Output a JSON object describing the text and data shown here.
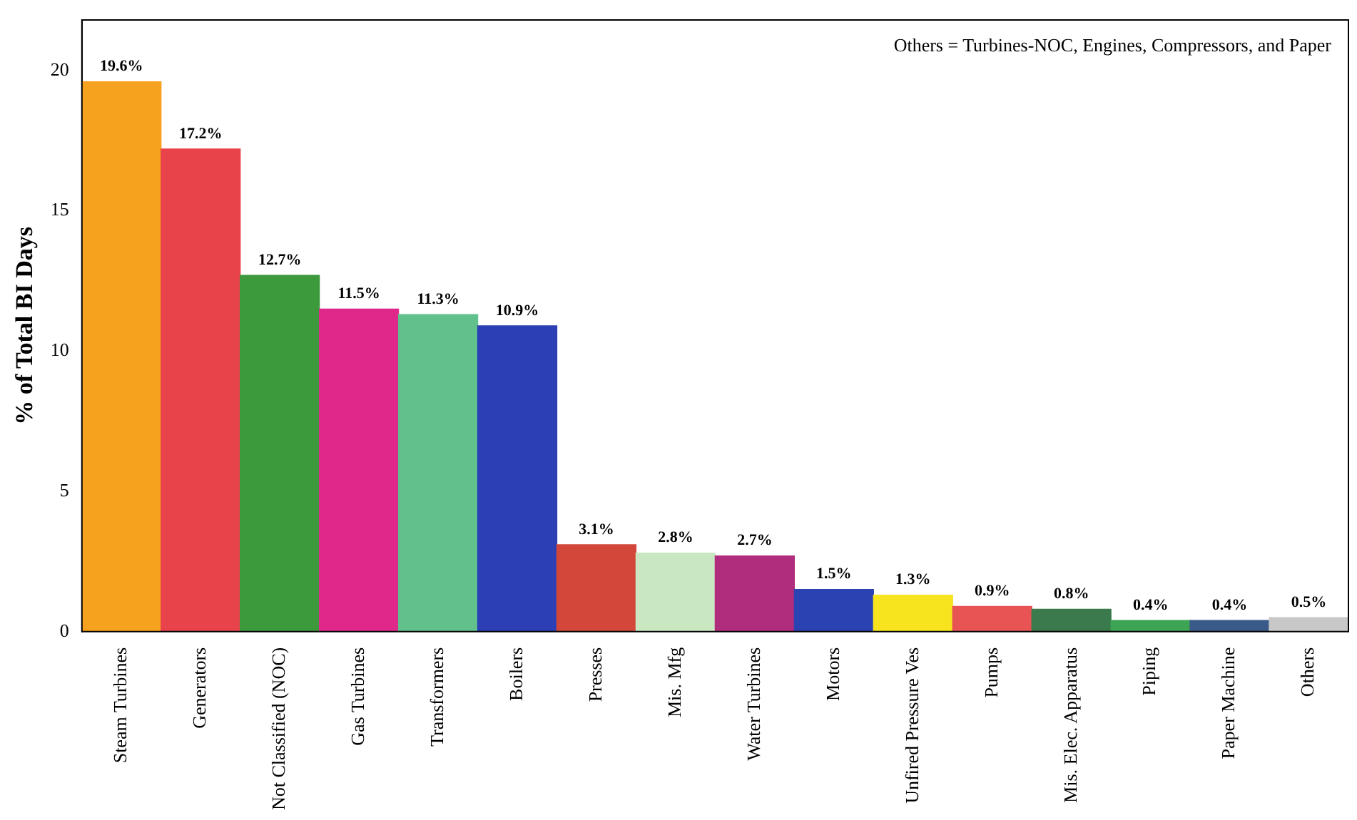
{
  "chart_data": {
    "type": "bar",
    "ylabel": "% of Total BI Days",
    "categories": [
      "Steam Turbines",
      "Generators",
      "Not Classified (NOC)",
      "Gas Turbines",
      "Transformers",
      "Boilers",
      "Presses",
      "Mis. Mfg",
      "Water Turbines",
      "Motors",
      "Unfired Pressure Ves",
      "Pumps",
      "Mis. Elec. Apparatus",
      "Piping",
      "Paper Machine",
      "Others"
    ],
    "values": [
      19.6,
      17.2,
      12.7,
      11.5,
      11.3,
      10.9,
      3.1,
      2.8,
      2.7,
      1.5,
      1.3,
      0.9,
      0.8,
      0.4,
      0.4,
      0.5
    ],
    "value_labels": [
      "19.6%",
      "17.2%",
      "12.7%",
      "11.5%",
      "11.3%",
      "10.9%",
      "3.1%",
      "2.8%",
      "2.7%",
      "1.5%",
      "1.3%",
      "0.9%",
      "0.8%",
      "0.4%",
      "0.4%",
      "0.5%"
    ],
    "colors": [
      "#f7a21e",
      "#e8434b",
      "#3c9a3c",
      "#e0288a",
      "#62c08c",
      "#2c3fb4",
      "#d2473a",
      "#c9e8c2",
      "#b02c7c",
      "#2a42b2",
      "#f8e41e",
      "#e85454",
      "#3a7a4c",
      "#3ca452",
      "#3a5a8a",
      "#c8c8c8"
    ],
    "ylim": [
      0,
      21.8
    ],
    "yticks": [
      0,
      5,
      10,
      15,
      20
    ],
    "annotations": [
      "Others = Turbines-NOC, Engines, Compressors, and Paper"
    ]
  }
}
